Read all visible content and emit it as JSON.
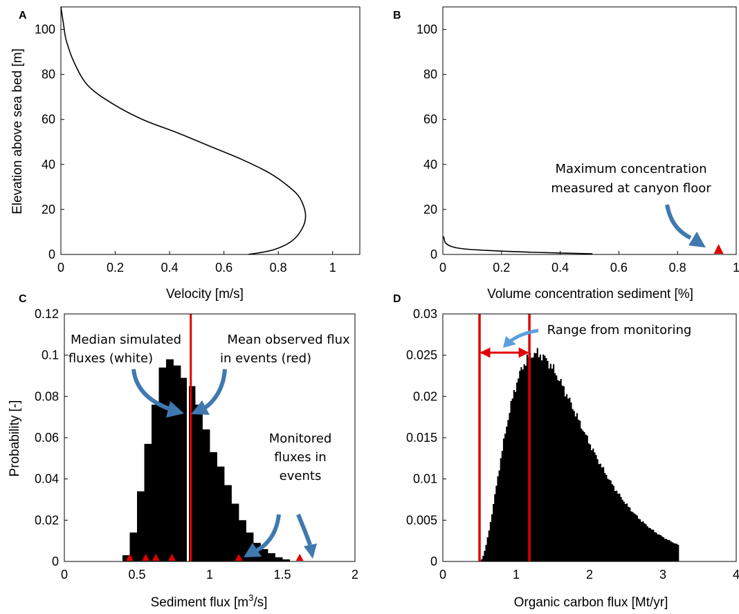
{
  "panels": {
    "A": {
      "letter": "A",
      "xlabel": "Velocity [m/s]",
      "ylabel": "Elevation above sea bed [m]",
      "xticks": [
        "0",
        "0.2",
        "0.4",
        "0.6",
        "0.8",
        "1"
      ],
      "yticks": [
        "0",
        "20",
        "40",
        "60",
        "80",
        "100"
      ]
    },
    "B": {
      "letter": "B",
      "xlabel": "Volume concentration sediment [%]",
      "xticks": [
        "0",
        "0.2",
        "0.4",
        "0.6",
        "0.8",
        "1"
      ],
      "yticks": [
        "0",
        "20",
        "40",
        "60",
        "80",
        "100"
      ],
      "annotation_line1": "Maximum concentration",
      "annotation_line2": "measured at canyon floor"
    },
    "C": {
      "letter": "C",
      "xlabel_prefix": "Sediment flux [m",
      "xlabel_sup": "3",
      "xlabel_suffix": "/s]",
      "ylabel": "Probability [-]",
      "xticks": [
        "0",
        "0.5",
        "1",
        "1.5",
        "2"
      ],
      "yticks": [
        "0",
        "0.02",
        "0.04",
        "0.06",
        "0.08",
        "0.1",
        "0.12"
      ],
      "ann_median_1": "Median simulated",
      "ann_median_2": "fluxes (white)",
      "ann_mean_1": "Mean observed flux",
      "ann_mean_2": "in  events (red)",
      "ann_monitored_1": "Monitored",
      "ann_monitored_2": "fluxes in",
      "ann_monitored_3": "events"
    },
    "D": {
      "letter": "D",
      "xlabel": "Organic carbon flux [Mt/yr]",
      "xticks": [
        "0",
        "1",
        "2",
        "3",
        "4"
      ],
      "yticks": [
        "0",
        "0.005",
        "0.01",
        "0.015",
        "0.02",
        "0.025",
        "0.03"
      ],
      "ann_range": "Range from monitoring"
    }
  },
  "colors": {
    "curve": "#000000",
    "red": "#e00000",
    "arrow": "#3f79b0",
    "arrow_light": "#5aa0dc",
    "bars": "#000000"
  },
  "chart_data": [
    {
      "panel": "A",
      "type": "line",
      "xlabel": "Velocity [m/s]",
      "ylabel": "Elevation above sea bed [m]",
      "xlim": [
        0,
        1.1
      ],
      "ylim": [
        0,
        110
      ],
      "x": [
        0.69,
        0.78,
        0.85,
        0.89,
        0.9,
        0.88,
        0.84,
        0.77,
        0.67,
        0.55,
        0.43,
        0.3,
        0.19,
        0.1,
        0.05,
        0.02,
        0.01,
        0
      ],
      "y": [
        0,
        2,
        6,
        12,
        18,
        25,
        30,
        36,
        42,
        48,
        54,
        60,
        67,
        75,
        85,
        95,
        102,
        110
      ]
    },
    {
      "panel": "B",
      "type": "line",
      "xlabel": "Volume concentration sediment [%]",
      "xlim": [
        0,
        1
      ],
      "ylim": [
        0,
        110
      ],
      "x": [
        0.51,
        0.3,
        0.15,
        0.07,
        0.03,
        0.01,
        0.005,
        0.003
      ],
      "y": [
        0.3,
        1,
        1.8,
        2.5,
        3.5,
        5,
        6.5,
        8
      ],
      "markers": [
        {
          "x": 0.94,
          "y": 2,
          "label": "Maximum concentration measured at canyon floor"
        }
      ]
    },
    {
      "panel": "C",
      "type": "bar",
      "xlabel": "Sediment flux [m3/s]",
      "ylabel": "Probability [-]",
      "xlim": [
        0,
        2
      ],
      "ylim": [
        0,
        0.12
      ],
      "bin_width": 0.05,
      "bin_starts": [
        0.4,
        0.45,
        0.5,
        0.55,
        0.6,
        0.65,
        0.7,
        0.75,
        0.8,
        0.85,
        0.9,
        0.95,
        1.0,
        1.05,
        1.1,
        1.15,
        1.2,
        1.25,
        1.3,
        1.35,
        1.4,
        1.45,
        1.5
      ],
      "values": [
        0.003,
        0.014,
        0.034,
        0.057,
        0.076,
        0.094,
        0.098,
        0.095,
        0.089,
        0.085,
        0.076,
        0.064,
        0.053,
        0.046,
        0.037,
        0.028,
        0.02,
        0.014,
        0.009,
        0.006,
        0.004,
        0.002,
        0.001
      ],
      "median_simulated": 0.85,
      "mean_observed": 0.87,
      "monitored_events": [
        0.45,
        0.56,
        0.63,
        0.74,
        1.2,
        1.62
      ]
    },
    {
      "panel": "D",
      "type": "bar",
      "xlabel": "Organic carbon flux [Mt/yr]",
      "xlim": [
        0,
        4
      ],
      "ylim": [
        0,
        0.03
      ],
      "bin_start": 0.5,
      "bin_end": 3.22,
      "peak_x": 1.27,
      "peak_value": 0.0252,
      "range_from_monitoring": [
        0.5,
        1.18
      ]
    }
  ]
}
